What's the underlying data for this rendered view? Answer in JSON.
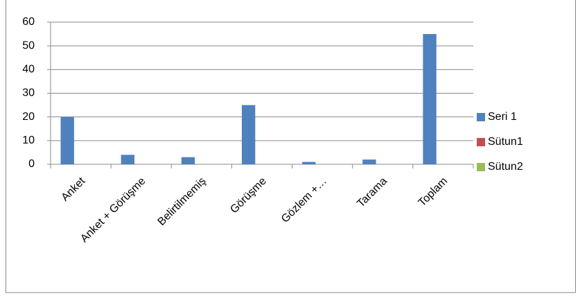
{
  "chart_data": {
    "type": "bar",
    "categories": [
      "Anket",
      "Anket + Görüşme",
      "Belirtilmemiş",
      "Görüşme",
      "Gözlem +…",
      "Tarama",
      "Toplam"
    ],
    "series": [
      {
        "name": "Seri 1",
        "color": "#4f81bd",
        "values": [
          20,
          4,
          3,
          25,
          1,
          2,
          55
        ]
      },
      {
        "name": "Sütun1",
        "color": "#c0504d",
        "values": [
          null,
          null,
          null,
          null,
          null,
          null,
          null
        ]
      },
      {
        "name": "Sütun2",
        "color": "#9bbb59",
        "values": [
          null,
          null,
          null,
          null,
          null,
          null,
          null
        ]
      }
    ],
    "ylim": [
      0,
      60
    ],
    "yticks": [
      0,
      10,
      20,
      30,
      40,
      50,
      60
    ],
    "grid": true,
    "legend": "right"
  }
}
